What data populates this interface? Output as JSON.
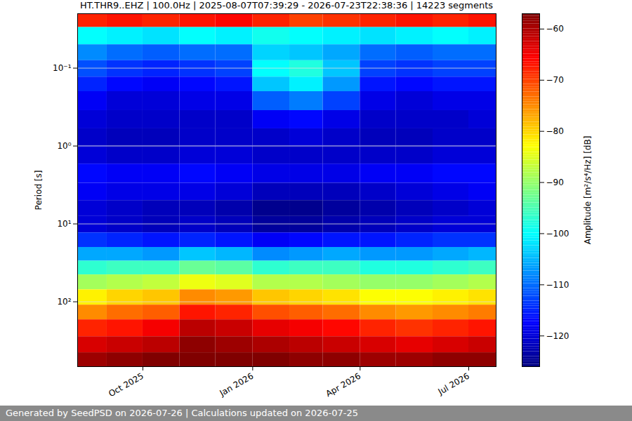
{
  "chart_data": {
    "type": "heatmap",
    "title": "HT.THR9..EHZ | 100.0Hz | 2025-08-07T07:39:29 - 2026-07-23T22:38:36 | 14223 segments",
    "footer": "Generated by SeedPSD on 2026-07-26 | Calculations updated on 2026-07-25",
    "y_label": "Period [s]",
    "log": "y",
    "grid": true,
    "color": "jet",
    "xlim": [
      "2025-08-07T07:39:29",
      "2026-07-23T22:38:36"
    ],
    "xticks": [
      {
        "value": "2025-10",
        "label": "Oct 2025"
      },
      {
        "value": "2026-01",
        "label": "Jan 2026"
      },
      {
        "value": "2026-04",
        "label": "Apr 2026"
      },
      {
        "value": "2026-07",
        "label": "Jul 2026"
      }
    ],
    "ylim": [
      0.02,
      680
    ],
    "yticks": [
      {
        "value": 0.1,
        "label": "10⁻¹"
      },
      {
        "value": 1,
        "label": "10⁰"
      },
      {
        "value": 10,
        "label": "10¹"
      },
      {
        "value": 100,
        "label": "10²"
      }
    ],
    "x_edges": [
      "2025-08-07T07:39:29",
      "2025-09",
      "2025-10",
      "2025-11",
      "2025-12",
      "2026-01",
      "2026-02",
      "2026-03",
      "2026-04",
      "2026-05",
      "2026-06",
      "2026-07",
      "2026-07-23T22:38:36"
    ],
    "y_edges": [
      0.02,
      0.03,
      0.05,
      0.08,
      0.13,
      0.2,
      0.35,
      0.6,
      1,
      1.7,
      3,
      5,
      8,
      13,
      20,
      30,
      45,
      70,
      110,
      170,
      280,
      450,
      680
    ],
    "z": [
      [
        -68,
        -67,
        -68,
        -67,
        -66,
        -68,
        -70,
        -69,
        -68,
        -67,
        -68,
        -67
      ],
      [
        -100,
        -101,
        -102,
        -100,
        -101,
        -99,
        -100,
        -101,
        -102,
        -101,
        -100,
        -101
      ],
      [
        -108,
        -110,
        -111,
        -110,
        -110,
        -103,
        -104,
        -106,
        -110,
        -111,
        -110,
        -110
      ],
      [
        -112,
        -114,
        -115,
        -114,
        -113,
        -100,
        -98,
        -104,
        -113,
        -114,
        -113,
        -113
      ],
      [
        -115,
        -117,
        -118,
        -117,
        -116,
        -104,
        -101,
        -107,
        -116,
        -117,
        -116,
        -116
      ],
      [
        -118,
        -120,
        -120,
        -119,
        -119,
        -111,
        -109,
        -113,
        -119,
        -120,
        -119,
        -119
      ],
      [
        -120,
        -121,
        -121,
        -121,
        -121,
        -118,
        -117,
        -119,
        -121,
        -121,
        -121,
        -120
      ],
      [
        -121,
        -122,
        -122,
        -121,
        -121,
        -121,
        -120,
        -121,
        -122,
        -122,
        -121,
        -121
      ],
      [
        -120,
        -121,
        -121,
        -120,
        -120,
        -121,
        -121,
        -121,
        -121,
        -121,
        -120,
        -120
      ],
      [
        -117,
        -118,
        -118,
        -117,
        -118,
        -119,
        -119,
        -119,
        -118,
        -118,
        -117,
        -117
      ],
      [
        -118,
        -119,
        -119,
        -119,
        -120,
        -122,
        -122,
        -122,
        -121,
        -120,
        -119,
        -118
      ],
      [
        -120,
        -121,
        -122,
        -122,
        -123,
        -125,
        -125,
        -124,
        -123,
        -122,
        -121,
        -120
      ],
      [
        -120,
        -121,
        -122,
        -121,
        -122,
        -124,
        -124,
        -123,
        -122,
        -121,
        -120,
        -120
      ],
      [
        -114,
        -115,
        -116,
        -115,
        -116,
        -118,
        -117,
        -116,
        -116,
        -115,
        -114,
        -114
      ],
      [
        -106,
        -106,
        -107,
        -104,
        -105,
        -108,
        -107,
        -106,
        -107,
        -107,
        -106,
        -105
      ],
      [
        -97,
        -96,
        -96,
        -93,
        -94,
        -97,
        -96,
        -96,
        -98,
        -98,
        -97,
        -96
      ],
      [
        -89,
        -88,
        -87,
        -84,
        -85,
        -88,
        -88,
        -89,
        -90,
        -90,
        -89,
        -88
      ],
      [
        -82,
        -80,
        -79,
        -75,
        -76,
        -79,
        -80,
        -81,
        -83,
        -83,
        -82,
        -81
      ],
      [
        -75,
        -73,
        -72,
        -67,
        -68,
        -71,
        -72,
        -73,
        -75,
        -76,
        -75,
        -74
      ],
      [
        -68,
        -67,
        -65,
        -61,
        -62,
        -64,
        -65,
        -66,
        -68,
        -69,
        -68,
        -67
      ],
      [
        -63,
        -62,
        -61,
        -58,
        -59,
        -60,
        -61,
        -62,
        -63,
        -64,
        -63,
        -62
      ],
      [
        -59,
        -58,
        -57,
        -57,
        -57,
        -57,
        -58,
        -58,
        -59,
        -59,
        -58,
        -58
      ]
    ],
    "colorbar": {
      "label": "Amplitude [m²/s⁴/Hz] [dB]",
      "range": [
        -126,
        -57
      ],
      "ticks": [
        -60,
        -70,
        -80,
        -90,
        -100,
        -110,
        -120
      ]
    }
  }
}
